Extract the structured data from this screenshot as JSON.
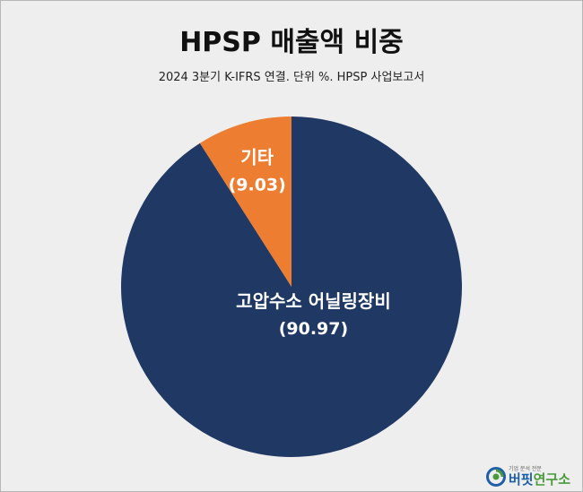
{
  "chart_data": {
    "type": "pie",
    "title": "HPSP 매출액 비중",
    "subtitle": "2024 3분기 K-IFRS 연결. 단위 %. HPSP 사업보고서",
    "start_angle_deg": 0,
    "direction": "clockwise",
    "slices": [
      {
        "label": "고압수소 어닐링장비",
        "value": 90.97,
        "value_label": "(90.97)",
        "color": "#203864"
      },
      {
        "label": "기타",
        "value": 9.03,
        "value_label": "(9.03)",
        "color": "#ed7d31"
      }
    ],
    "label_color": "#ffffff",
    "legend": "none"
  },
  "branding": {
    "name_part1": "버핏",
    "name_part2": "연구소",
    "tagline": "기업 분석 전문",
    "logo_colors": [
      "#1e5fa8",
      "#4a9a3c"
    ]
  },
  "colors": {
    "background": "#eeeeee",
    "border": "#b8b8b8"
  }
}
